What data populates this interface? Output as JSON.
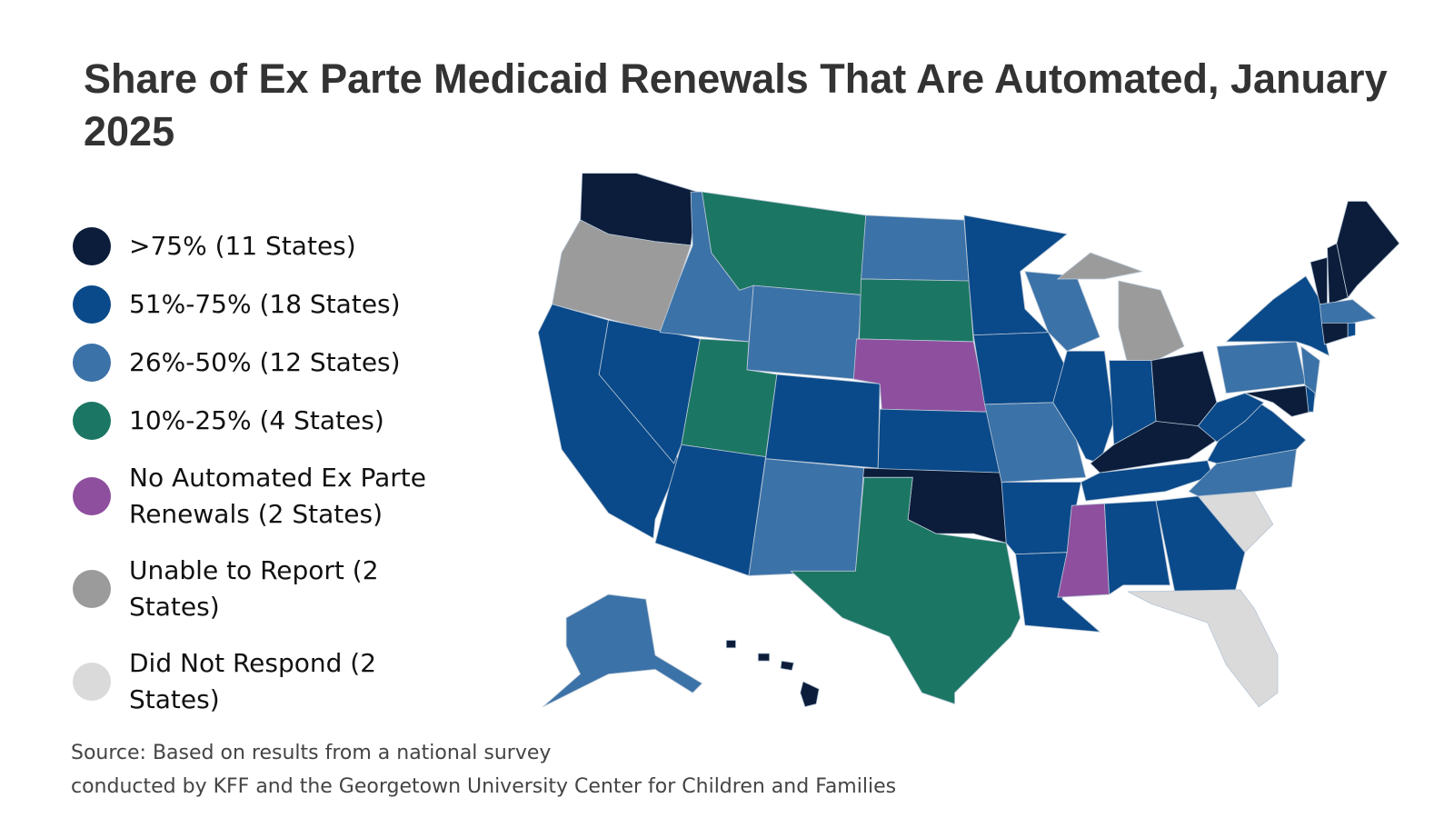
{
  "title": "Share of Ex Parte Medicaid Renewals That Are Automated, January 2025",
  "legend": [
    {
      "label": ">75% (11 States)",
      "color": "#0b1d3a"
    },
    {
      "label": "51%-75% (18 States)",
      "color": "#0a4a8a"
    },
    {
      "label": "26%-50% (12 States)",
      "color": "#3b72a8"
    },
    {
      "label": "10%-25% (4 States)",
      "color": "#1b7763"
    },
    {
      "label": "No Automated Ex Parte Renewals (2 States)",
      "color": "#8e4f9e"
    },
    {
      "label": "Unable to Report (2 States)",
      "color": "#9b9b9b"
    },
    {
      "label": "Did Not Respond (2 States)",
      "color": "#dadada"
    }
  ],
  "source": [
    "Source: Based on results from a national survey",
    "conducted by KFF and the Georgetown University Center for Children and Families"
  ]
}
